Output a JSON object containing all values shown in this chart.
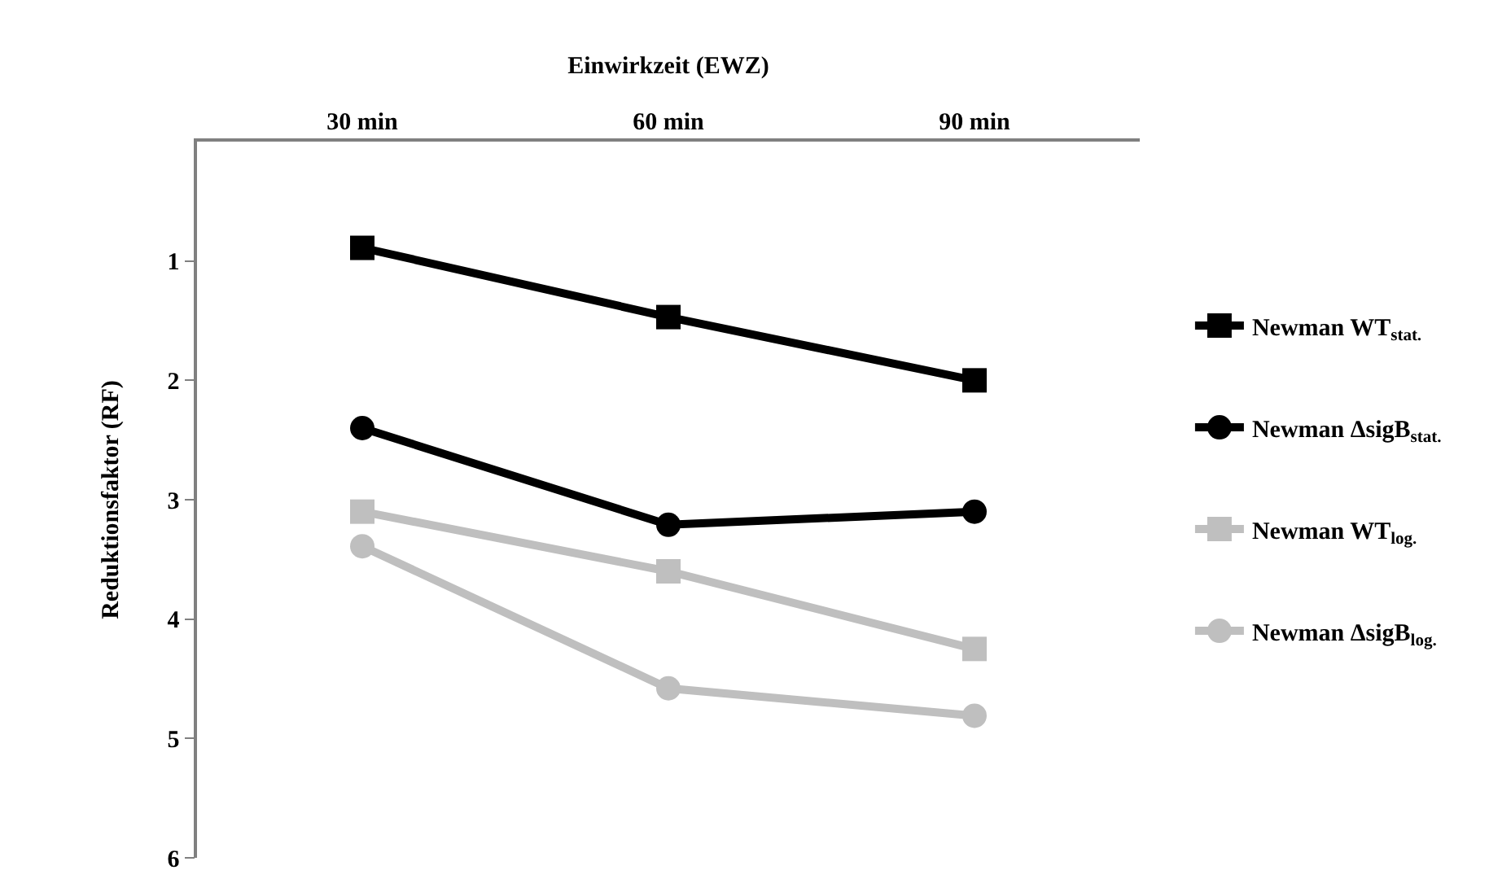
{
  "chart_data": {
    "type": "line",
    "xlabel": "Einwirkzeit (EWZ)",
    "ylabel": "Reduktionsfaktor (RF)",
    "categories": [
      "30 min",
      "60 min",
      "90 min"
    ],
    "series": [
      {
        "name": "Newman WT$_{stat.}$",
        "color": "#000000",
        "marker": "square",
        "values": [
          0.89,
          1.47,
          2.0
        ]
      },
      {
        "name": "Newman ΔsigB$_{stat.}$",
        "color": "#000000",
        "marker": "circle",
        "values": [
          2.4,
          3.21,
          3.1
        ]
      },
      {
        "name": "Newman WT$_{log.}$",
        "color": "#bfbfbf",
        "marker": "square",
        "values": [
          3.1,
          3.6,
          4.25
        ]
      },
      {
        "name": "Newman ΔsigB$_{log.}$",
        "color": "#bfbfbf",
        "marker": "circle",
        "values": [
          3.39,
          4.58,
          4.81
        ]
      }
    ],
    "ylim": [
      6,
      0
    ],
    "yticks": [
      1,
      2,
      3,
      4,
      5,
      6
    ],
    "legend": "right",
    "line_style": "solid"
  }
}
